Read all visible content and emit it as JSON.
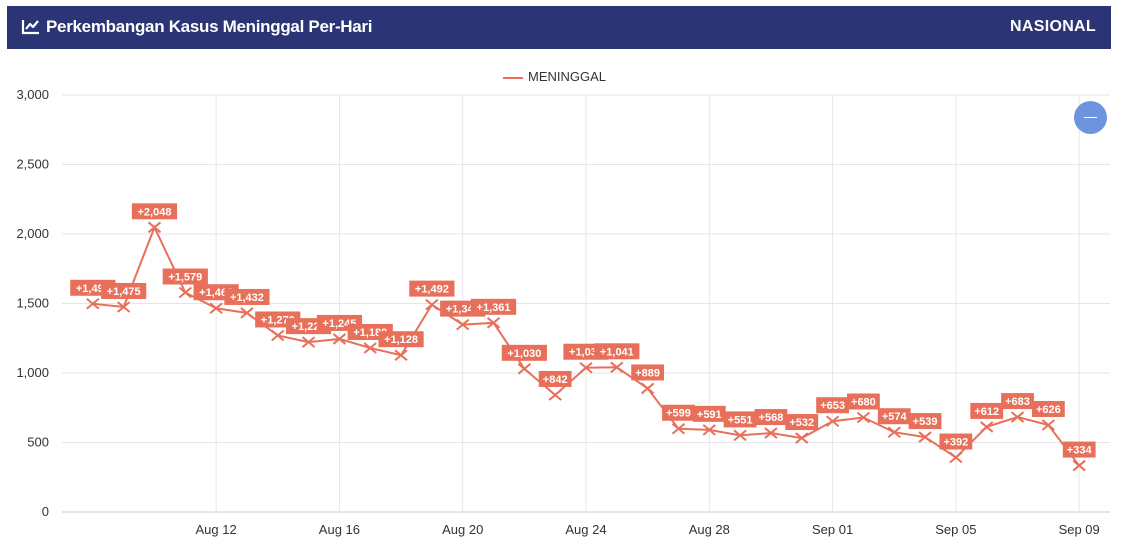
{
  "header": {
    "title": "Perkembangan Kasus Meninggal Per-Hari",
    "region": "NASIONAL",
    "icon": "line-chart-icon",
    "bg_color": "#2b3474"
  },
  "zoom_button": {
    "icon": "minus-icon",
    "color": "#6d94dd"
  },
  "chart_data": {
    "type": "line",
    "title": "Perkembangan Kasus Meninggal Per-Hari",
    "xlabel": "",
    "ylabel": "",
    "ylim": [
      0,
      3000
    ],
    "yticks": [
      "0",
      "500",
      "1,000",
      "1,500",
      "2,000",
      "2,500",
      "3,000"
    ],
    "xticks": [
      {
        "label": "Aug 12",
        "x": "2021-08-12"
      },
      {
        "label": "Aug 16",
        "x": "2021-08-16"
      },
      {
        "label": "Aug 20",
        "x": "2021-08-20"
      },
      {
        "label": "Aug 24",
        "x": "2021-08-24"
      },
      {
        "label": "Aug 28",
        "x": "2021-08-28"
      },
      {
        "label": "Sep 01",
        "x": "2021-09-01"
      },
      {
        "label": "Sep 05",
        "x": "2021-09-05"
      },
      {
        "label": "Sep 09",
        "x": "2021-09-09"
      }
    ],
    "grid": true,
    "legend_position": "top-center",
    "series": [
      {
        "name": "MENINGGAL",
        "color": "#e8705a",
        "x": [
          "2021-08-08",
          "2021-08-09",
          "2021-08-10",
          "2021-08-11",
          "2021-08-12",
          "2021-08-13",
          "2021-08-14",
          "2021-08-15",
          "2021-08-16",
          "2021-08-17",
          "2021-08-18",
          "2021-08-19",
          "2021-08-20",
          "2021-08-21",
          "2021-08-22",
          "2021-08-23",
          "2021-08-24",
          "2021-08-25",
          "2021-08-26",
          "2021-08-27",
          "2021-08-28",
          "2021-08-29",
          "2021-08-30",
          "2021-08-31",
          "2021-09-01",
          "2021-09-02",
          "2021-09-03",
          "2021-09-04",
          "2021-09-05",
          "2021-09-06",
          "2021-09-07",
          "2021-09-08",
          "2021-09-09"
        ],
        "values": [
          1498,
          1475,
          2048,
          1579,
          1466,
          1432,
          1270,
          1222,
          1245,
          1180,
          1128,
          1492,
          1348,
          1361,
          1030,
          842,
          1038,
          1041,
          889,
          599,
          591,
          551,
          568,
          532,
          653,
          680,
          574,
          539,
          392,
          612,
          683,
          626,
          334
        ],
        "labels": [
          "+1,498",
          "+1,475",
          "+2,048",
          "+1,579",
          "+1,466",
          "+1,432",
          "+1,270",
          "+1,222",
          "+1,245",
          "+1,180",
          "+1,128",
          "+1,492",
          "+1,348",
          "+1,361",
          "+1,030",
          "+842",
          "+1,038",
          "+1,041",
          "+889",
          "+599",
          "+591",
          "+551",
          "+568",
          "+532",
          "+653",
          "+680",
          "+574",
          "+539",
          "+392",
          "+612",
          "+683",
          "+626",
          "+334"
        ]
      }
    ]
  }
}
